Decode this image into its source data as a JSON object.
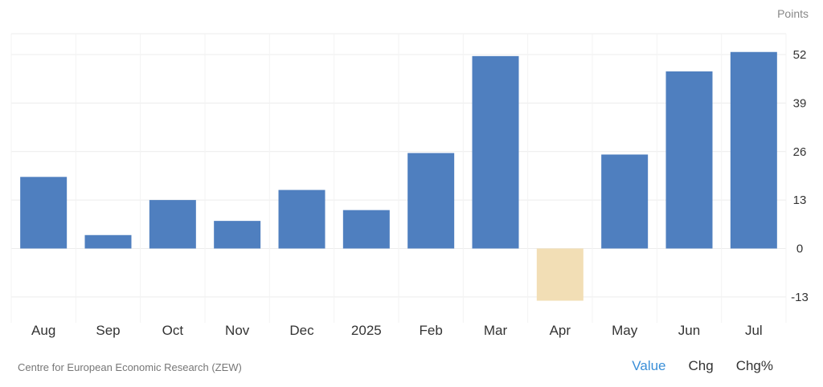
{
  "chart_data": {
    "type": "bar",
    "unit_label": "Points",
    "categories": [
      "Aug",
      "Sep",
      "Oct",
      "Nov",
      "Dec",
      "2025",
      "Feb",
      "Mar",
      "Apr",
      "May",
      "Jun",
      "Jul"
    ],
    "values": [
      19.2,
      3.6,
      13.0,
      7.4,
      15.7,
      10.3,
      25.6,
      51.6,
      -14.0,
      25.2,
      47.5,
      52.7
    ],
    "yticks": [
      -13,
      0,
      13,
      26,
      39,
      52
    ],
    "ylim": [
      -19,
      58
    ],
    "colors": {
      "positive": "#4f7fbf",
      "negative": "#f2deb5",
      "grid": "#ececec"
    },
    "grid": true
  },
  "footer": {
    "source": "Centre for European Economic Research (ZEW)",
    "tabs": [
      {
        "label": "Value",
        "active": true
      },
      {
        "label": "Chg",
        "active": false
      },
      {
        "label": "Chg%",
        "active": false
      }
    ]
  }
}
